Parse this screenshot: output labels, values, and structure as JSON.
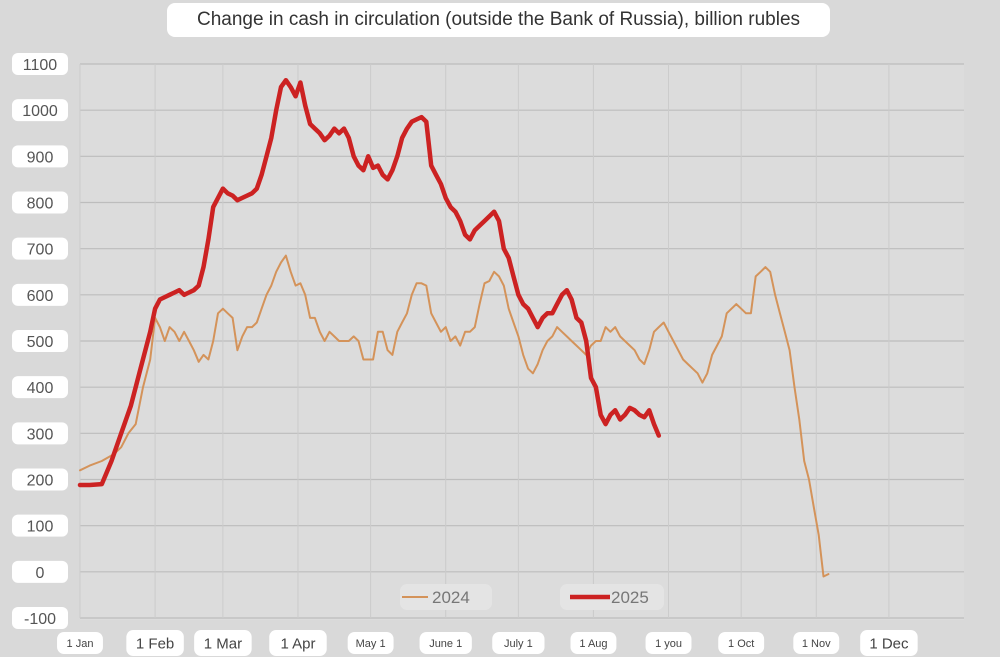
{
  "chart_data": {
    "type": "line",
    "title": "Change in cash in circulation (outside the Bank of Russia), billion rubles",
    "xlabel": "",
    "ylabel": "",
    "ylim": [
      -100,
      1100
    ],
    "yticks": [
      -100,
      0,
      100,
      200,
      300,
      400,
      500,
      600,
      700,
      800,
      900,
      1000,
      1100
    ],
    "xlim": [
      1,
      366
    ],
    "xticks": [
      {
        "label": "1 Jan",
        "day": 1
      },
      {
        "label": "1 Feb",
        "day": 32
      },
      {
        "label": "1 Mar",
        "day": 60
      },
      {
        "label": "1 Apr",
        "day": 91
      },
      {
        "label": "May 1",
        "day": 121
      },
      {
        "label": "June 1",
        "day": 152
      },
      {
        "label": "July 1",
        "day": 182
      },
      {
        "label": "1 Aug",
        "day": 213
      },
      {
        "label": "1 you",
        "day": 244
      },
      {
        "label": "1 Oct",
        "day": 274
      },
      {
        "label": "1 Nov",
        "day": 305
      },
      {
        "label": "1 Dec",
        "day": 335
      }
    ],
    "grid": true,
    "legend": "bottom-center",
    "series": [
      {
        "name": "2024",
        "color": "#d4935a",
        "points": [
          [
            1,
            220
          ],
          [
            5,
            230
          ],
          [
            10,
            240
          ],
          [
            15,
            255
          ],
          [
            18,
            270
          ],
          [
            21,
            300
          ],
          [
            24,
            320
          ],
          [
            27,
            400
          ],
          [
            29,
            440
          ],
          [
            30,
            460
          ],
          [
            32,
            550
          ],
          [
            34,
            530
          ],
          [
            36,
            500
          ],
          [
            38,
            530
          ],
          [
            40,
            520
          ],
          [
            42,
            500
          ],
          [
            44,
            520
          ],
          [
            46,
            500
          ],
          [
            48,
            480
          ],
          [
            50,
            455
          ],
          [
            52,
            470
          ],
          [
            54,
            460
          ],
          [
            56,
            500
          ],
          [
            58,
            560
          ],
          [
            60,
            570
          ],
          [
            62,
            560
          ],
          [
            64,
            550
          ],
          [
            66,
            480
          ],
          [
            68,
            510
          ],
          [
            70,
            530
          ],
          [
            72,
            530
          ],
          [
            74,
            540
          ],
          [
            76,
            570
          ],
          [
            78,
            600
          ],
          [
            80,
            620
          ],
          [
            82,
            650
          ],
          [
            84,
            670
          ],
          [
            86,
            685
          ],
          [
            88,
            650
          ],
          [
            90,
            620
          ],
          [
            92,
            625
          ],
          [
            94,
            600
          ],
          [
            96,
            550
          ],
          [
            98,
            550
          ],
          [
            100,
            520
          ],
          [
            102,
            500
          ],
          [
            104,
            520
          ],
          [
            106,
            510
          ],
          [
            108,
            500
          ],
          [
            110,
            500
          ],
          [
            112,
            500
          ],
          [
            114,
            510
          ],
          [
            116,
            500
          ],
          [
            118,
            460
          ],
          [
            120,
            460
          ],
          [
            122,
            460
          ],
          [
            124,
            520
          ],
          [
            126,
            520
          ],
          [
            128,
            480
          ],
          [
            130,
            470
          ],
          [
            132,
            520
          ],
          [
            134,
            540
          ],
          [
            136,
            560
          ],
          [
            138,
            600
          ],
          [
            140,
            625
          ],
          [
            142,
            625
          ],
          [
            144,
            620
          ],
          [
            146,
            560
          ],
          [
            148,
            540
          ],
          [
            150,
            520
          ],
          [
            152,
            530
          ],
          [
            154,
            500
          ],
          [
            156,
            510
          ],
          [
            158,
            490
          ],
          [
            160,
            520
          ],
          [
            162,
            520
          ],
          [
            164,
            530
          ],
          [
            166,
            580
          ],
          [
            168,
            625
          ],
          [
            170,
            630
          ],
          [
            172,
            650
          ],
          [
            174,
            640
          ],
          [
            176,
            620
          ],
          [
            178,
            570
          ],
          [
            180,
            540
          ],
          [
            182,
            510
          ],
          [
            184,
            470
          ],
          [
            186,
            440
          ],
          [
            188,
            430
          ],
          [
            190,
            450
          ],
          [
            192,
            480
          ],
          [
            194,
            500
          ],
          [
            196,
            510
          ],
          [
            198,
            530
          ],
          [
            200,
            520
          ],
          [
            202,
            510
          ],
          [
            204,
            500
          ],
          [
            206,
            490
          ],
          [
            208,
            480
          ],
          [
            210,
            470
          ],
          [
            212,
            490
          ],
          [
            214,
            500
          ],
          [
            216,
            500
          ],
          [
            218,
            530
          ],
          [
            220,
            520
          ],
          [
            222,
            530
          ],
          [
            224,
            510
          ],
          [
            226,
            500
          ],
          [
            228,
            490
          ],
          [
            230,
            480
          ],
          [
            232,
            460
          ],
          [
            234,
            450
          ],
          [
            236,
            480
          ],
          [
            238,
            520
          ],
          [
            240,
            530
          ],
          [
            242,
            540
          ],
          [
            244,
            520
          ],
          [
            246,
            500
          ],
          [
            248,
            480
          ],
          [
            250,
            460
          ],
          [
            252,
            450
          ],
          [
            254,
            440
          ],
          [
            256,
            430
          ],
          [
            258,
            410
          ],
          [
            260,
            430
          ],
          [
            262,
            470
          ],
          [
            264,
            490
          ],
          [
            266,
            510
          ],
          [
            268,
            560
          ],
          [
            270,
            570
          ],
          [
            272,
            580
          ],
          [
            274,
            570
          ],
          [
            276,
            560
          ],
          [
            278,
            560
          ],
          [
            280,
            640
          ],
          [
            282,
            650
          ],
          [
            284,
            660
          ],
          [
            286,
            650
          ],
          [
            288,
            600
          ],
          [
            290,
            560
          ],
          [
            292,
            520
          ],
          [
            294,
            480
          ],
          [
            296,
            400
          ],
          [
            298,
            330
          ],
          [
            300,
            240
          ],
          [
            302,
            200
          ],
          [
            304,
            140
          ],
          [
            306,
            80
          ],
          [
            308,
            -10
          ],
          [
            310,
            -5
          ]
        ]
      },
      {
        "name": "2025",
        "color": "#cc2222",
        "points": [
          [
            1,
            188
          ],
          [
            5,
            188
          ],
          [
            10,
            190
          ],
          [
            14,
            240
          ],
          [
            18,
            300
          ],
          [
            22,
            360
          ],
          [
            26,
            440
          ],
          [
            30,
            520
          ],
          [
            32,
            570
          ],
          [
            34,
            590
          ],
          [
            36,
            595
          ],
          [
            38,
            600
          ],
          [
            40,
            605
          ],
          [
            42,
            610
          ],
          [
            44,
            600
          ],
          [
            46,
            605
          ],
          [
            48,
            610
          ],
          [
            50,
            620
          ],
          [
            52,
            660
          ],
          [
            54,
            720
          ],
          [
            56,
            790
          ],
          [
            58,
            810
          ],
          [
            60,
            830
          ],
          [
            62,
            820
          ],
          [
            64,
            815
          ],
          [
            66,
            805
          ],
          [
            68,
            810
          ],
          [
            70,
            815
          ],
          [
            72,
            820
          ],
          [
            74,
            830
          ],
          [
            76,
            860
          ],
          [
            78,
            900
          ],
          [
            80,
            940
          ],
          [
            82,
            1000
          ],
          [
            84,
            1050
          ],
          [
            86,
            1065
          ],
          [
            88,
            1050
          ],
          [
            90,
            1030
          ],
          [
            92,
            1060
          ],
          [
            94,
            1010
          ],
          [
            96,
            970
          ],
          [
            98,
            960
          ],
          [
            100,
            950
          ],
          [
            102,
            935
          ],
          [
            104,
            945
          ],
          [
            106,
            960
          ],
          [
            108,
            950
          ],
          [
            110,
            960
          ],
          [
            112,
            940
          ],
          [
            114,
            900
          ],
          [
            116,
            880
          ],
          [
            118,
            870
          ],
          [
            120,
            900
          ],
          [
            122,
            875
          ],
          [
            124,
            880
          ],
          [
            126,
            860
          ],
          [
            128,
            850
          ],
          [
            130,
            870
          ],
          [
            132,
            900
          ],
          [
            134,
            940
          ],
          [
            136,
            960
          ],
          [
            138,
            975
          ],
          [
            140,
            980
          ],
          [
            142,
            985
          ],
          [
            144,
            975
          ],
          [
            146,
            880
          ],
          [
            148,
            860
          ],
          [
            150,
            840
          ],
          [
            152,
            810
          ],
          [
            154,
            790
          ],
          [
            156,
            780
          ],
          [
            158,
            760
          ],
          [
            160,
            730
          ],
          [
            162,
            720
          ],
          [
            164,
            740
          ],
          [
            166,
            750
          ],
          [
            168,
            760
          ],
          [
            170,
            770
          ],
          [
            172,
            780
          ],
          [
            174,
            760
          ],
          [
            176,
            700
          ],
          [
            178,
            680
          ],
          [
            180,
            640
          ],
          [
            182,
            600
          ],
          [
            184,
            580
          ],
          [
            186,
            570
          ],
          [
            188,
            550
          ],
          [
            190,
            530
          ],
          [
            192,
            550
          ],
          [
            194,
            560
          ],
          [
            196,
            560
          ],
          [
            198,
            580
          ],
          [
            200,
            600
          ],
          [
            202,
            610
          ],
          [
            204,
            590
          ],
          [
            206,
            550
          ],
          [
            208,
            540
          ],
          [
            210,
            500
          ],
          [
            212,
            420
          ],
          [
            214,
            400
          ],
          [
            216,
            340
          ],
          [
            218,
            320
          ],
          [
            220,
            340
          ],
          [
            222,
            350
          ],
          [
            224,
            330
          ],
          [
            226,
            340
          ],
          [
            228,
            355
          ],
          [
            230,
            350
          ],
          [
            232,
            340
          ],
          [
            234,
            335
          ],
          [
            236,
            350
          ],
          [
            238,
            320
          ],
          [
            240,
            295
          ]
        ]
      }
    ]
  }
}
